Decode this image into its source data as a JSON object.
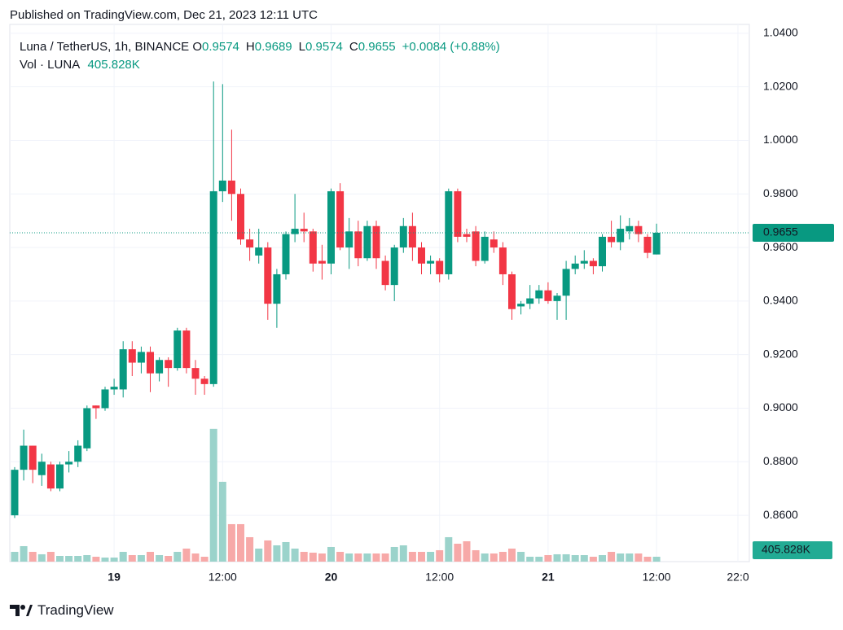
{
  "header": {
    "published": "Published on TradingView.com, Dec 21, 2023 12:11 UTC"
  },
  "footer": {
    "brand": "TradingView"
  },
  "chart_data": {
    "type": "candlestick",
    "symbol": "Luna / TetherUS, 1h, BINANCE",
    "ohlc_labels": [
      "O",
      "H",
      "L",
      "C"
    ],
    "change": "+0.0084 (+0.88%)",
    "categories": [
      null,
      null,
      null,
      null,
      null,
      null,
      null,
      null,
      null,
      null,
      null,
      "19",
      null,
      null,
      null,
      null,
      null,
      null,
      null,
      null,
      null,
      null,
      null,
      "12:00",
      null,
      null,
      null,
      null,
      null,
      null,
      null,
      null,
      null,
      null,
      null,
      "20",
      null,
      null,
      null,
      null,
      null,
      null,
      null,
      null,
      null,
      null,
      null,
      "12:00",
      null,
      null,
      null,
      null,
      null,
      null,
      null,
      null,
      null,
      null,
      null,
      "21",
      null,
      null,
      null,
      null,
      null,
      null,
      null,
      null,
      null,
      null,
      null,
      "12:00",
      null,
      null,
      null,
      null,
      null,
      null,
      null,
      null,
      "22:0",
      null
    ],
    "open": [
      0.86,
      0.877,
      0.886,
      0.875,
      0.879,
      0.87,
      0.879,
      0.88,
      0.885,
      0.901,
      0.9,
      0.907,
      0.907,
      0.922,
      0.917,
      0.921,
      0.913,
      0.918,
      0.915,
      0.929,
      0.915,
      0.911,
      0.909,
      0.981,
      0.985,
      0.98,
      0.963,
      0.957,
      0.96,
      0.939,
      0.95,
      0.965,
      0.967,
      0.966,
      0.955,
      0.954,
      0.981,
      0.96,
      0.966,
      0.956,
      0.968,
      0.955,
      0.946,
      0.96,
      0.968,
      0.96,
      0.954,
      0.955,
      0.95,
      0.981,
      0.965,
      0.966,
      0.955,
      0.963,
      0.96,
      0.95,
      0.938,
      0.939,
      0.941,
      0.944,
      0.94,
      0.942,
      0.952,
      0.954,
      0.955,
      0.953,
      0.964,
      0.962,
      0.966,
      0.968,
      0.964,
      0.9574,
      null,
      null,
      null,
      null,
      null,
      null,
      null,
      null,
      null,
      null
    ],
    "high": [
      0.878,
      0.892,
      0.886,
      0.883,
      0.88,
      0.88,
      0.884,
      0.888,
      0.901,
      0.901,
      0.908,
      0.911,
      0.925,
      0.925,
      0.923,
      0.923,
      0.919,
      0.919,
      0.93,
      0.93,
      0.918,
      0.912,
      1.022,
      1.021,
      1.004,
      0.982,
      0.967,
      0.967,
      0.962,
      0.952,
      0.966,
      0.98,
      0.973,
      0.967,
      0.961,
      0.982,
      0.984,
      0.971,
      0.97,
      0.97,
      0.97,
      0.957,
      0.961,
      0.971,
      0.973,
      0.962,
      0.957,
      0.956,
      0.982,
      0.982,
      0.967,
      0.968,
      0.966,
      0.966,
      0.962,
      0.951,
      0.94,
      0.946,
      0.946,
      0.947,
      0.943,
      0.955,
      0.957,
      0.959,
      0.956,
      0.965,
      0.97,
      0.972,
      0.971,
      0.97,
      0.965,
      0.9689,
      null,
      null,
      null,
      null,
      null,
      null,
      null,
      null,
      null,
      null
    ],
    "low": [
      0.859,
      0.873,
      0.872,
      0.871,
      0.869,
      0.869,
      0.876,
      0.878,
      0.884,
      0.896,
      0.899,
      0.905,
      0.904,
      0.912,
      0.913,
      0.906,
      0.91,
      0.908,
      0.914,
      0.913,
      0.905,
      0.905,
      0.908,
      0.977,
      0.97,
      0.961,
      0.955,
      0.954,
      0.933,
      0.93,
      0.948,
      0.962,
      0.962,
      0.951,
      0.948,
      0.95,
      0.959,
      0.952,
      0.953,
      0.955,
      0.952,
      0.944,
      0.94,
      0.958,
      0.955,
      0.95,
      0.95,
      0.947,
      0.948,
      0.962,
      0.962,
      0.953,
      0.954,
      0.958,
      0.946,
      0.933,
      0.935,
      0.937,
      0.939,
      0.939,
      0.933,
      0.933,
      0.95,
      0.952,
      0.95,
      0.951,
      0.96,
      0.959,
      0.963,
      0.962,
      0.956,
      0.9574,
      null,
      null,
      null,
      null,
      null,
      null,
      null,
      null,
      null,
      null
    ],
    "close": [
      0.877,
      0.886,
      0.877,
      0.88,
      0.87,
      0.879,
      0.88,
      0.886,
      0.9,
      0.9,
      0.907,
      0.908,
      0.922,
      0.917,
      0.921,
      0.913,
      0.918,
      0.915,
      0.929,
      0.915,
      0.911,
      0.909,
      0.981,
      0.985,
      0.98,
      0.963,
      0.96,
      0.96,
      0.939,
      0.95,
      0.965,
      0.967,
      0.966,
      0.954,
      0.954,
      0.981,
      0.96,
      0.966,
      0.956,
      0.968,
      0.956,
      0.946,
      0.96,
      0.968,
      0.96,
      0.954,
      0.955,
      0.95,
      0.981,
      0.964,
      0.964,
      0.955,
      0.964,
      0.96,
      0.95,
      0.937,
      0.939,
      0.941,
      0.944,
      0.94,
      0.942,
      0.952,
      0.954,
      0.955,
      0.953,
      0.964,
      0.962,
      0.967,
      0.968,
      0.965,
      0.958,
      0.9655,
      null,
      null,
      null,
      null,
      null,
      null,
      null,
      null,
      null,
      null
    ],
    "volume": {
      "name": "Vol · LUNA",
      "last_label": "405.828K",
      "values": [
        812000,
        1285000,
        812000,
        609000,
        812000,
        473000,
        473000,
        473000,
        541000,
        406000,
        338000,
        338000,
        812000,
        541000,
        541000,
        812000,
        541000,
        473000,
        812000,
        1082000,
        676000,
        406000,
        11025000,
        6628000,
        3111000,
        3111000,
        2029000,
        1082000,
        1759000,
        1353000,
        1623000,
        1082000,
        812000,
        744000,
        676000,
        1217000,
        812000,
        676000,
        676000,
        676000,
        676000,
        676000,
        1217000,
        1353000,
        812000,
        812000,
        812000,
        947000,
        2029000,
        1488000,
        1691000,
        947000,
        676000,
        676000,
        812000,
        1082000,
        812000,
        406000,
        406000,
        541000,
        609000,
        609000,
        541000,
        541000,
        406000,
        541000,
        812000,
        676000,
        676000,
        676000,
        406000,
        405828,
        null,
        null,
        null,
        null,
        null,
        null,
        null,
        null,
        null,
        null
      ],
      "ylim": [
        0,
        44600000
      ]
    },
    "up_color": "#089981",
    "down_color": "#f23645",
    "volume_up_color": "#9bd3cb",
    "volume_down_color": "#f7a9a8",
    "ylim": [
      0.8427,
      1.0433
    ],
    "yticks": [
      {
        "value": 0.86,
        "label": "0.8600"
      },
      {
        "value": 0.88,
        "label": "0.8800"
      },
      {
        "value": 0.9,
        "label": "0.9000"
      },
      {
        "value": 0.92,
        "label": "0.9200"
      },
      {
        "value": 0.94,
        "label": "0.9400"
      },
      {
        "value": 0.96,
        "label": "0.9600"
      },
      {
        "value": 0.98,
        "label": "0.9800"
      },
      {
        "value": 1.0,
        "label": "1.0000"
      },
      {
        "value": 1.02,
        "label": "1.0200"
      },
      {
        "value": 1.04,
        "label": "1.0400"
      }
    ],
    "grid": true
  }
}
